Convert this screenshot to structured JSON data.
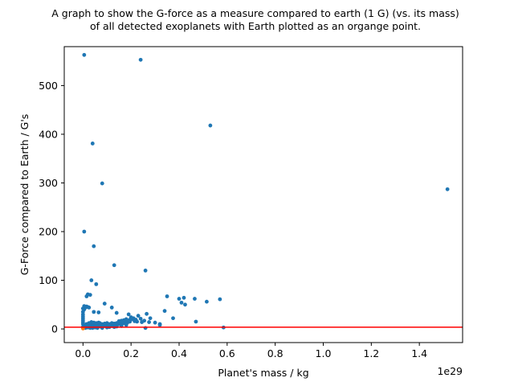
{
  "chart_data": {
    "type": "scatter",
    "title_lines": [
      "A graph to show the G-force as a measure compared to earth (1 G) (vs. its mass)",
      "of all detected exoplanets with Earth plotted as an organge point."
    ],
    "xlabel": "Planet's mass / kg",
    "ylabel": "G-Force compared to Earth / G's",
    "x_offset_label": "1e29",
    "x_unit_scale": 1e+29,
    "xlim": [
      -0.078,
      1.58
    ],
    "ylim": [
      -28,
      580
    ],
    "x_ticks": [
      0.0,
      0.2,
      0.4,
      0.6,
      0.8,
      1.0,
      1.2,
      1.4
    ],
    "x_tick_labels": [
      "0.0",
      "0.2",
      "0.4",
      "0.6",
      "0.8",
      "1.0",
      "1.2",
      "1.4"
    ],
    "y_ticks": [
      0,
      100,
      200,
      300,
      400,
      500
    ],
    "y_tick_labels": [
      "0",
      "100",
      "200",
      "300",
      "400",
      "500"
    ],
    "grid": false,
    "legend": null,
    "reference_line": {
      "y": 3.7,
      "color": "#ff0000"
    },
    "series": [
      {
        "color": "#1f77b4",
        "points": [
          [
            0.005,
            563
          ],
          [
            0.24,
            553
          ],
          [
            0.53,
            418
          ],
          [
            0.04,
            381
          ],
          [
            0.08,
            299
          ],
          [
            1.517,
            287
          ],
          [
            0.005,
            200
          ],
          [
            0.045,
            170
          ],
          [
            0.13,
            131
          ],
          [
            0.26,
            120
          ],
          [
            0.035,
            100
          ],
          [
            0.055,
            92
          ],
          [
            0.02,
            71
          ],
          [
            0.03,
            70
          ],
          [
            0.015,
            67
          ],
          [
            0.35,
            67
          ],
          [
            0.4,
            62
          ],
          [
            0.42,
            64
          ],
          [
            0.465,
            62
          ],
          [
            0.57,
            61
          ],
          [
            0.515,
            56
          ],
          [
            0.41,
            54
          ],
          [
            0.425,
            50
          ],
          [
            0.09,
            52
          ],
          [
            0.12,
            44
          ],
          [
            0.005,
            47
          ],
          [
            0.015,
            46
          ],
          [
            0.02,
            45
          ],
          [
            0.025,
            44
          ],
          [
            0.01,
            44
          ],
          [
            0.0,
            42
          ],
          [
            0.005,
            40
          ],
          [
            0.045,
            35
          ],
          [
            0.065,
            34
          ],
          [
            0.14,
            33
          ],
          [
            0.34,
            37
          ],
          [
            0.265,
            31
          ],
          [
            0.19,
            30
          ],
          [
            0.0,
            35
          ],
          [
            0.0,
            30
          ],
          [
            0.0,
            26
          ],
          [
            0.0,
            22
          ],
          [
            0.0,
            18
          ],
          [
            0.0,
            14
          ],
          [
            0.0,
            10
          ],
          [
            0.005,
            8
          ],
          [
            0.005,
            6
          ],
          [
            0.0,
            4
          ],
          [
            0.01,
            3
          ],
          [
            0.01,
            2
          ],
          [
            0.23,
            27
          ],
          [
            0.21,
            22
          ],
          [
            0.2,
            24
          ],
          [
            0.18,
            20
          ],
          [
            0.17,
            18
          ],
          [
            0.16,
            17
          ],
          [
            0.15,
            16
          ],
          [
            0.22,
            19
          ],
          [
            0.24,
            21
          ],
          [
            0.28,
            22
          ],
          [
            0.375,
            22
          ],
          [
            0.205,
            20
          ],
          [
            0.195,
            19
          ],
          [
            0.215,
            16
          ],
          [
            0.225,
            15
          ],
          [
            0.245,
            14
          ],
          [
            0.275,
            14
          ],
          [
            0.255,
            17
          ],
          [
            0.3,
            13
          ],
          [
            0.32,
            10
          ],
          [
            0.32,
            8
          ],
          [
            0.47,
            15
          ],
          [
            0.26,
            2
          ],
          [
            0.585,
            3
          ],
          [
            0.03,
            12
          ],
          [
            0.04,
            10
          ],
          [
            0.05,
            9
          ],
          [
            0.06,
            11
          ],
          [
            0.07,
            12
          ],
          [
            0.08,
            10
          ],
          [
            0.09,
            11
          ],
          [
            0.1,
            12
          ],
          [
            0.11,
            10
          ],
          [
            0.12,
            12
          ],
          [
            0.13,
            11
          ],
          [
            0.14,
            12
          ],
          [
            0.15,
            13
          ],
          [
            0.16,
            14
          ],
          [
            0.03,
            6
          ],
          [
            0.04,
            5
          ],
          [
            0.05,
            4
          ],
          [
            0.06,
            6
          ],
          [
            0.07,
            5
          ],
          [
            0.08,
            4
          ],
          [
            0.09,
            6
          ],
          [
            0.1,
            5
          ],
          [
            0.11,
            4
          ],
          [
            0.12,
            6
          ],
          [
            0.14,
            5
          ],
          [
            0.16,
            6
          ],
          [
            0.18,
            8
          ],
          [
            0.02,
            3
          ],
          [
            0.03,
            2
          ],
          [
            0.04,
            2
          ],
          [
            0.05,
            3
          ],
          [
            0.06,
            2
          ],
          [
            0.08,
            2
          ],
          [
            0.1,
            3
          ],
          [
            0.13,
            4
          ],
          [
            0.015,
            10
          ],
          [
            0.02,
            8
          ],
          [
            0.025,
            12
          ],
          [
            0.035,
            14
          ],
          [
            0.045,
            13
          ],
          [
            0.055,
            12
          ],
          [
            0.065,
            13
          ],
          [
            0.075,
            9
          ],
          [
            0.085,
            8
          ],
          [
            0.095,
            9
          ],
          [
            0.105,
            8
          ],
          [
            0.115,
            7
          ],
          [
            0.125,
            9
          ],
          [
            0.135,
            8
          ],
          [
            0.145,
            9
          ],
          [
            0.155,
            10
          ],
          [
            0.165,
            11
          ],
          [
            0.175,
            12
          ],
          [
            0.185,
            13
          ],
          [
            0.195,
            15
          ],
          [
            0.17,
            16
          ],
          [
            0.18,
            17
          ],
          [
            0.16,
            15
          ]
        ]
      },
      {
        "color": "#ff7f0e",
        "points": [
          [
            0.0,
            1
          ]
        ]
      }
    ]
  }
}
